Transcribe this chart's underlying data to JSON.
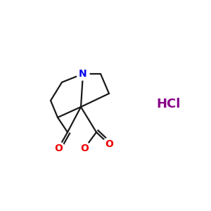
{
  "bg_color": "#ffffff",
  "bond_color": "#1a1a1a",
  "N_color": "#0000ee",
  "O_color": "#ee0000",
  "HCl_color": "#880088",
  "HCl_text": "HCl",
  "N_label": "N",
  "O_label": "O",
  "line_width": 1.6,
  "N_fontsize": 10,
  "O_fontsize": 10,
  "HCl_fontsize": 13,
  "figsize": [
    3.0,
    3.0
  ],
  "dpi": 100
}
